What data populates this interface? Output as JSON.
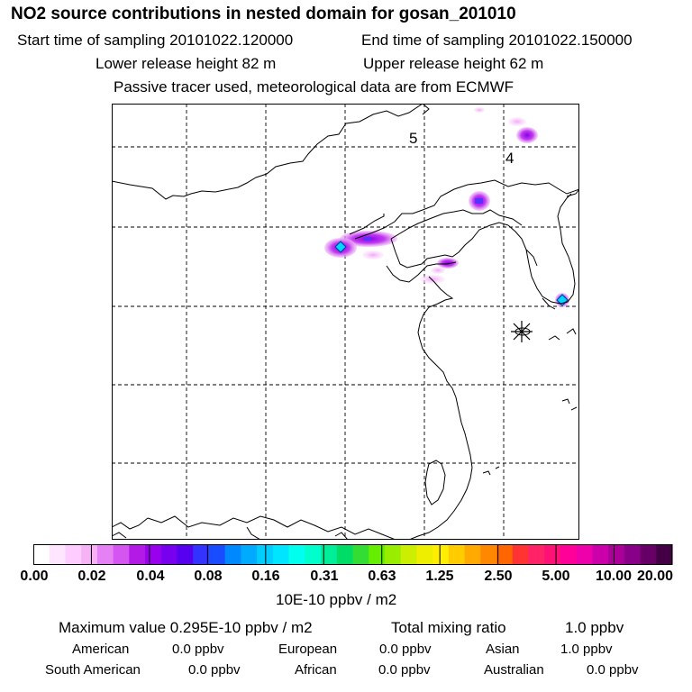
{
  "header": {
    "title": "NO2 source contributions in nested domain for gosan_201010",
    "start_time": "Start time of sampling 20101022.120000",
    "end_time": "End time of sampling 20101022.150000",
    "lower_release": "Lower release height   82 m",
    "upper_release": "Upper release height   62 m",
    "note": "Passive tracer used, meteorological data are from ECMWF"
  },
  "map": {
    "labels": [
      "5",
      "4"
    ]
  },
  "colorbar": {
    "colors": [
      "#ffffff",
      "#ffe6ff",
      "#ffccff",
      "#f5b3f5",
      "#e680f5",
      "#d455f0",
      "#b31ae6",
      "#9900ee",
      "#7700ee",
      "#5500ee",
      "#3333ff",
      "#1a4cff",
      "#0088ff",
      "#00aaff",
      "#00ccff",
      "#00e5ff",
      "#00ffee",
      "#00ffcc",
      "#00ee99",
      "#00dd66",
      "#33dd33",
      "#66ee00",
      "#99ee00",
      "#ccee00",
      "#eeee00",
      "#ffee00",
      "#ffcc00",
      "#ffaa00",
      "#ff8800",
      "#ff6600",
      "#ff3333",
      "#ff2266",
      "#ff1177",
      "#ff0099",
      "#ee00aa",
      "#cc00aa",
      "#aa0099",
      "#880088",
      "#660066",
      "#440044"
    ],
    "ticks": [
      "0.00",
      "0.02",
      "0.04",
      "0.08",
      "0.16",
      "0.31",
      "0.63",
      "1.25",
      "2.50",
      "5.00",
      "10.00",
      "20.00"
    ],
    "unit": "10E-10 ppbv / m2"
  },
  "stats": {
    "max_label": "Maximum value  0.295E-10 ppbv / m2",
    "total_label": "Total mixing ratio",
    "total_value": "1.0 ppbv",
    "american_label": "American",
    "american_value": "0.0 ppbv",
    "european_label": "European",
    "european_value": "0.0 ppbv",
    "asian_label": "Asian",
    "asian_value": "1.0 ppbv",
    "southamerican_label": "South American",
    "southamerican_value": "0.0 ppbv",
    "african_label": "African",
    "african_value": "0.0 ppbv",
    "australian_label": "Australian",
    "australian_value": "0.0 ppbv"
  }
}
